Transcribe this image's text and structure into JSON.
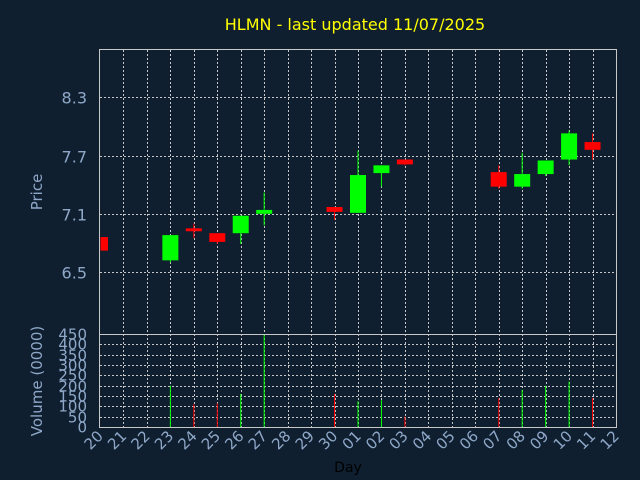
{
  "chart_data": {
    "type": "candlestick",
    "title": "HLMN - last updated 11/07/2025",
    "xlabel": "Day",
    "ylabel": "Price",
    "volume_label": "Volume (0000)",
    "x_ticks": [
      "20",
      "21",
      "22",
      "23",
      "24",
      "25",
      "26",
      "27",
      "28",
      "29",
      "30",
      "01",
      "02",
      "03",
      "04",
      "05",
      "06",
      "07",
      "08",
      "09",
      "10",
      "11",
      "12"
    ],
    "price_ticks": [
      6.5,
      7.1,
      7.7,
      8.3
    ],
    "price_tick_labels": [
      "6.5",
      "7.1",
      "7.7",
      "8.3"
    ],
    "price_range": [
      5.86,
      8.79
    ],
    "volume_ticks": [
      0,
      50,
      100,
      150,
      200,
      250,
      300,
      350,
      400,
      450
    ],
    "volume_tick_labels": [
      "0",
      "50",
      "100",
      "150",
      "200",
      "250",
      "300",
      "350",
      "400",
      "450"
    ],
    "volume_range": [
      0,
      450
    ],
    "grid": true,
    "colors": {
      "background": "#0f1f30",
      "grid": "#c8c8c8",
      "up": "#00ff00",
      "down": "#ff0000",
      "title": "#ffff00",
      "label": "#8fa8c8"
    },
    "candles": [
      {
        "x": 0,
        "open": 6.86,
        "close": 6.72,
        "high": 6.86,
        "low": 6.72,
        "volume": 0
      },
      {
        "x": 3,
        "open": 6.62,
        "close": 6.88,
        "high": 6.88,
        "low": 6.6,
        "volume": 200
      },
      {
        "x": 4,
        "open": 6.95,
        "close": 6.92,
        "high": 7.0,
        "low": 6.85,
        "volume": 110
      },
      {
        "x": 5,
        "open": 6.9,
        "close": 6.81,
        "high": 6.9,
        "low": 6.79,
        "volume": 115
      },
      {
        "x": 6,
        "open": 6.9,
        "close": 7.08,
        "high": 7.08,
        "low": 6.79,
        "volume": 160
      },
      {
        "x": 7,
        "open": 7.1,
        "close": 7.14,
        "high": 7.32,
        "low": 6.98,
        "volume": 450
      },
      {
        "x": 10,
        "open": 7.17,
        "close": 7.12,
        "high": 7.17,
        "low": 7.04,
        "volume": 160
      },
      {
        "x": 11,
        "open": 7.11,
        "close": 7.5,
        "high": 7.75,
        "low": 7.11,
        "volume": 125
      },
      {
        "x": 12,
        "open": 7.52,
        "close": 7.6,
        "high": 7.6,
        "low": 7.38,
        "volume": 130
      },
      {
        "x": 13,
        "open": 7.66,
        "close": 7.61,
        "high": 7.66,
        "low": 7.6,
        "volume": 50
      },
      {
        "x": 17,
        "open": 7.53,
        "close": 7.38,
        "high": 7.6,
        "low": 7.36,
        "volume": 140
      },
      {
        "x": 18,
        "open": 7.38,
        "close": 7.51,
        "high": 7.73,
        "low": 7.36,
        "volume": 180
      },
      {
        "x": 19,
        "open": 7.51,
        "close": 7.65,
        "high": 7.65,
        "low": 7.49,
        "volume": 200
      },
      {
        "x": 20,
        "open": 7.66,
        "close": 7.93,
        "high": 7.96,
        "low": 7.6,
        "volume": 220
      },
      {
        "x": 21,
        "open": 7.84,
        "close": 7.76,
        "high": 7.93,
        "low": 7.66,
        "volume": 140
      }
    ]
  }
}
